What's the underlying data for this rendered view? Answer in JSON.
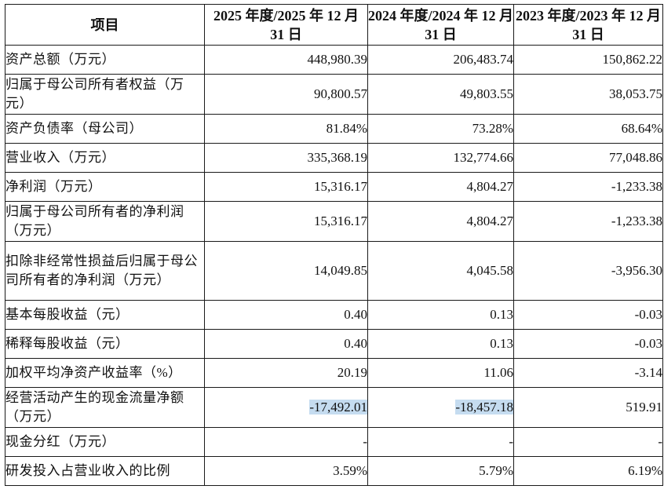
{
  "table": {
    "headers": [
      "项目",
      "2025 年度/2025 年 12 月 31 日",
      "2024 年度/2024 年 12 月 31 日",
      "2023 年度/2023 年 12 月 31 日"
    ],
    "highlight_color": "#c5dcf0",
    "rows": [
      {
        "label": "资产总额（万元）",
        "values": [
          "448,980.39",
          "206,483.74",
          "150,862.22"
        ]
      },
      {
        "label": "归属于母公司所有者权益（万元）",
        "values": [
          "90,800.57",
          "49,803.55",
          "38,053.75"
        ]
      },
      {
        "label": "资产负债率（母公司）",
        "values": [
          "81.84%",
          "73.28%",
          "68.64%"
        ]
      },
      {
        "label": "营业收入（万元）",
        "values": [
          "335,368.19",
          "132,774.66",
          "77,048.86"
        ]
      },
      {
        "label": "净利润（万元）",
        "values": [
          "15,316.17",
          "4,804.27",
          "-1,233.38"
        ]
      },
      {
        "label": "归属于母公司所有者的净利润（万元）",
        "values": [
          "15,316.17",
          "4,804.27",
          "-1,233.38"
        ]
      },
      {
        "label": "扣除非经常性损益后归属于母公司所有者的净利润（万元）",
        "values": [
          "14,049.85",
          "4,045.58",
          "-3,956.30"
        ]
      },
      {
        "label": "基本每股收益（元）",
        "values": [
          "0.40",
          "0.13",
          "-0.03"
        ]
      },
      {
        "label": "稀释每股收益（元）",
        "values": [
          "0.40",
          "0.13",
          "-0.03"
        ]
      },
      {
        "label": "加权平均净资产收益率（%）",
        "values": [
          "20.19",
          "11.06",
          "-3.14"
        ]
      },
      {
        "label": "经营活动产生的现金流量净额（万元）",
        "values": [
          "-17,492.01",
          "-18,457.18",
          "519.91"
        ]
      },
      {
        "label": "现金分红（万元）",
        "values": [
          "-",
          "-",
          "-"
        ]
      },
      {
        "label": "研发投入占营业收入的比例",
        "values": [
          "3.59%",
          "5.79%",
          "6.19%"
        ]
      }
    ]
  }
}
